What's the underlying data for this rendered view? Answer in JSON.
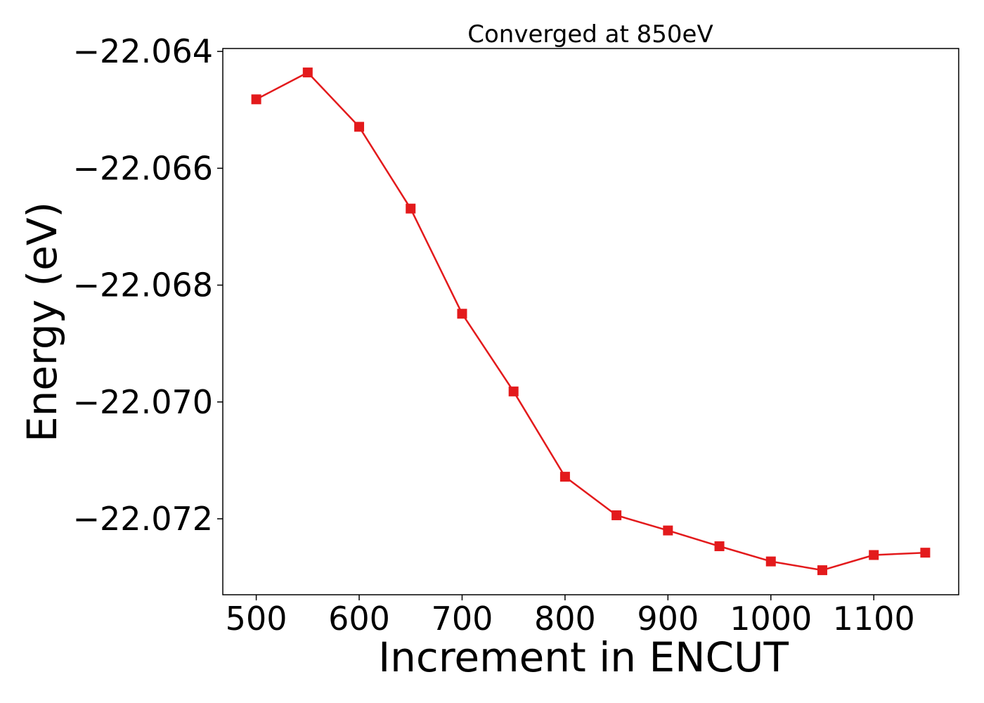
{
  "chart_data": {
    "type": "line",
    "title": "Converged at 850eV",
    "xlabel": "Increment in ENCUT",
    "ylabel": "Energy (eV)",
    "x": [
      500,
      550,
      600,
      650,
      700,
      750,
      800,
      850,
      900,
      950,
      1000,
      1050,
      1100,
      1150
    ],
    "series": [
      {
        "values": [
          -22.06482,
          -22.06436,
          -22.06529,
          -22.06669,
          -22.06849,
          -22.06982,
          -22.07128,
          -22.07194,
          -22.0722,
          -22.07247,
          -22.07273,
          -22.07288,
          -22.07262,
          -22.07258
        ],
        "color": "#e31a1c",
        "marker": "square"
      }
    ],
    "xlim": [
      467.5,
      1182.5
    ],
    "ylim": [
      -22.0733,
      -22.06395
    ],
    "xticks": [
      500,
      600,
      700,
      800,
      900,
      1000,
      1100
    ],
    "xtick_labels": [
      "500",
      "600",
      "700",
      "800",
      "900",
      "1000",
      "1100"
    ],
    "yticks": [
      -22.064,
      -22.066,
      -22.068,
      -22.07,
      -22.072
    ],
    "ytick_labels": [
      "−22.064",
      "−22.066",
      "−22.068",
      "−22.070",
      "−22.072"
    ],
    "grid": false,
    "legend": false
  }
}
